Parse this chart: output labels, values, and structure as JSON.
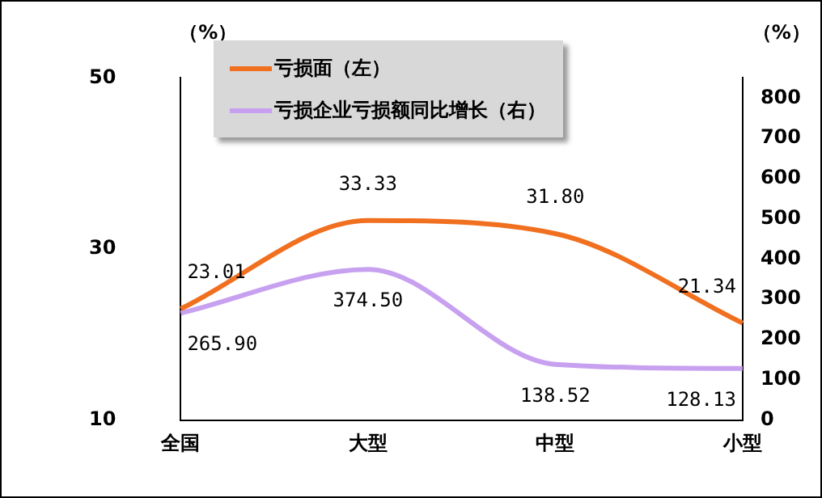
{
  "chart_data": {
    "type": "line",
    "ylabel": "（%）",
    "y2label": "（%）",
    "categories": [
      "全国",
      "大型",
      "中型",
      "小型"
    ],
    "series": [
      {
        "name": "亏损面（左）",
        "color": "#f07020",
        "values": [
          23.01,
          33.33,
          31.8,
          21.34
        ],
        "value_labels": [
          "23.01",
          "33.33",
          "31.80",
          "21.34"
        ]
      },
      {
        "name": "亏损企业亏损额同比增长（右）",
        "color": "#c8a0f0",
        "axis": "y2",
        "values": [
          265.9,
          374.5,
          138.52,
          128.13
        ],
        "value_labels": [
          "265.90",
          "374.50",
          "138.52",
          "128.13"
        ]
      }
    ],
    "ylim": [
      10,
      50
    ],
    "yticks": [
      10,
      30,
      50
    ],
    "y2lim": [
      0,
      850
    ],
    "y2ticks": [
      0,
      100,
      200,
      300,
      400,
      500,
      600,
      700,
      800
    ],
    "grid": false,
    "legend": "top left",
    "marker": "none",
    "line_style": "solid"
  }
}
